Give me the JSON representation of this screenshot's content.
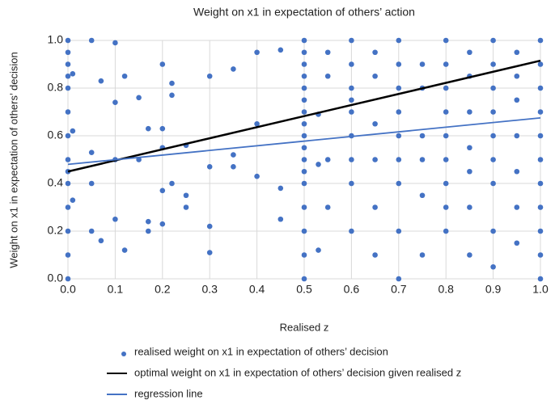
{
  "chart_data": {
    "type": "scatter",
    "title": "Weight on x1 in expectation of others’ action",
    "x_label": "Realised z",
    "y_label": "Weight on x1 in expectation of others’ decision",
    "xlim": [
      0,
      1
    ],
    "ylim": [
      0,
      1
    ],
    "xticks": [
      {
        "value": 0,
        "label": "0.0"
      },
      0.1,
      0.2,
      0.3,
      0.4,
      0.5,
      0.6,
      0.7,
      0.8,
      0.9,
      {
        "value": 1,
        "label": "1.0"
      }
    ],
    "yticks": [
      {
        "value": 0,
        "label": "0.0"
      },
      0.2,
      0.4,
      0.6,
      0.8,
      {
        "value": 1,
        "label": "1.0"
      }
    ],
    "grid": true,
    "series": [
      {
        "name": "realised weight on x1 in expectation of others’ decision",
        "type": "scatter",
        "color": "#4472c4",
        "x": [
          0,
          0,
          0,
          0,
          0,
          0,
          0,
          0,
          0,
          0,
          0,
          0,
          0,
          0,
          0.01,
          0.01,
          0.01,
          0.05,
          0.05,
          0.05,
          0.05,
          0.07,
          0.07,
          0.1,
          0.1,
          0.1,
          0.1,
          0.12,
          0.12,
          0.15,
          0.15,
          0.17,
          0.17,
          0.17,
          0.2,
          0.2,
          0.2,
          0.2,
          0.2,
          0.22,
          0.22,
          0.22,
          0.25,
          0.25,
          0.25,
          0.3,
          0.3,
          0.3,
          0.3,
          0.35,
          0.35,
          0.35,
          0.4,
          0.4,
          0.4,
          0.45,
          0.45,
          0.45,
          0.5,
          0.5,
          0.5,
          0.5,
          0.5,
          0.5,
          0.5,
          0.5,
          0.5,
          0.5,
          0.5,
          0.5,
          0.5,
          0.5,
          0.5,
          0.5,
          0.5,
          0.53,
          0.53,
          0.53,
          0.55,
          0.55,
          0.55,
          0.55,
          0.6,
          0.6,
          0.6,
          0.6,
          0.6,
          0.6,
          0.6,
          0.6,
          0.6,
          0.65,
          0.65,
          0.65,
          0.65,
          0.65,
          0.65,
          0.7,
          0.7,
          0.7,
          0.7,
          0.7,
          0.7,
          0.7,
          0.7,
          0.7,
          0.75,
          0.75,
          0.75,
          0.75,
          0.75,
          0.75,
          0.8,
          0.8,
          0.8,
          0.8,
          0.8,
          0.8,
          0.8,
          0.8,
          0.8,
          0.85,
          0.85,
          0.85,
          0.85,
          0.85,
          0.85,
          0.85,
          0.9,
          0.9,
          0.9,
          0.9,
          0.9,
          0.9,
          0.9,
          0.9,
          0.9,
          0.95,
          0.95,
          0.95,
          0.95,
          0.95,
          0.95,
          0.95,
          1,
          1,
          1,
          1,
          1,
          1,
          1,
          1,
          1,
          1,
          1
        ],
        "values": [
          1,
          0.95,
          0.9,
          0.85,
          0.8,
          0.7,
          0.6,
          0.5,
          0.45,
          0.4,
          0.3,
          0.2,
          0.1,
          0,
          0.62,
          0.33,
          0.86,
          0.53,
          0.4,
          0.2,
          1,
          0.16,
          0.83,
          0.99,
          0.74,
          0.5,
          0.25,
          0.12,
          0.85,
          0.5,
          0.76,
          0.63,
          0.24,
          0.2,
          0.9,
          0.63,
          0.55,
          0.37,
          0.23,
          0.82,
          0.77,
          0.4,
          0.56,
          0.35,
          0.3,
          0.85,
          0.47,
          0.22,
          0.11,
          0.52,
          0.47,
          0.88,
          0.43,
          0.65,
          0.95,
          0.25,
          0.38,
          0.96,
          0,
          0.1,
          0.2,
          0.3,
          0.4,
          0.45,
          0.5,
          0.55,
          0.6,
          0.65,
          0.7,
          0.75,
          0.8,
          0.85,
          0.9,
          0.95,
          1,
          0.12,
          0.48,
          0.69,
          0.5,
          0.3,
          0.85,
          0.95,
          0.2,
          0.4,
          0.5,
          0.6,
          0.7,
          0.75,
          0.8,
          0.9,
          1,
          0.1,
          0.3,
          0.5,
          0.65,
          0.85,
          0.95,
          0,
          0.2,
          0.4,
          0.5,
          0.6,
          0.7,
          0.8,
          0.9,
          1,
          0.1,
          0.35,
          0.5,
          0.6,
          0.8,
          0.9,
          0.2,
          0.3,
          0.4,
          0.5,
          0.6,
          0.7,
          0.8,
          0.9,
          1,
          0.1,
          0.3,
          0.45,
          0.55,
          0.7,
          0.85,
          0.95,
          0.05,
          0.2,
          0.4,
          0.5,
          0.6,
          0.7,
          0.8,
          0.9,
          1,
          0.15,
          0.3,
          0.45,
          0.6,
          0.75,
          0.85,
          0.95,
          0,
          0.1,
          0.2,
          0.3,
          0.4,
          0.5,
          0.6,
          0.7,
          0.8,
          0.9,
          1
        ]
      },
      {
        "name": "optimal weight on x1 in expectation of others’ decision given realised z",
        "type": "line",
        "color": "#000000",
        "x": [
          0,
          1
        ],
        "values": [
          0.45,
          0.915
        ]
      },
      {
        "name": "regression line",
        "type": "line",
        "color": "#4472c4",
        "x": [
          0,
          1
        ],
        "values": [
          0.48,
          0.675
        ]
      }
    ]
  }
}
